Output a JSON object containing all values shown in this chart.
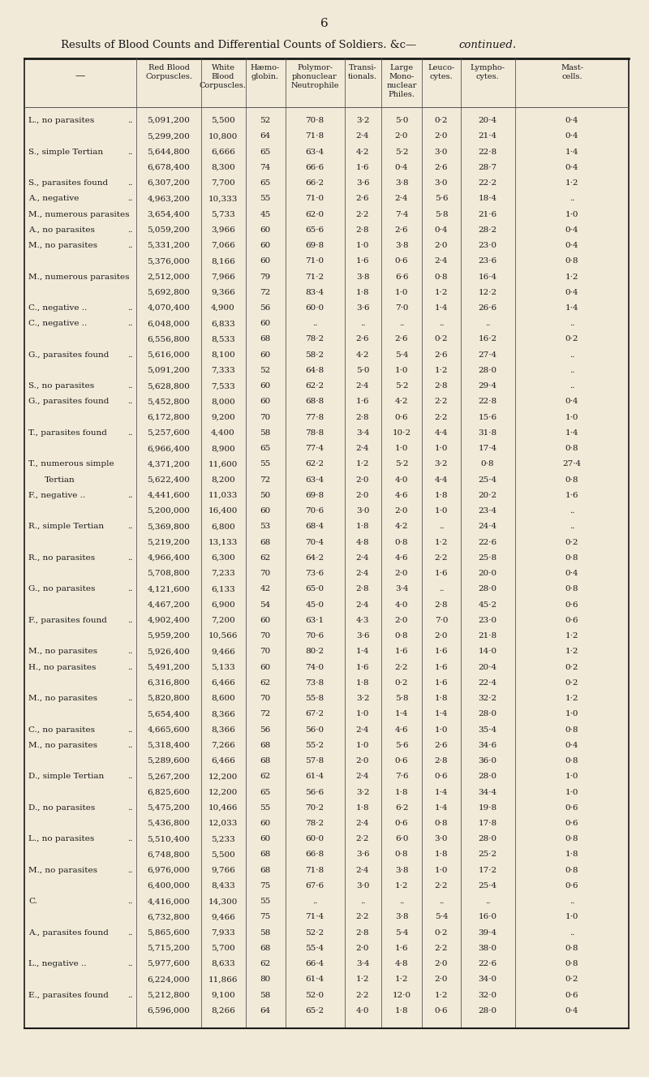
{
  "page_number": "6",
  "title_normal": "Results of Blood Counts and Differential Counts of Soldiers. &c—",
  "title_italic": "continued.",
  "bg_color": "#f2ead8",
  "col_headers": [
    "Red Blood\nCorpuscles.",
    "White\nBlood\nCorpuscles.",
    "Hæmo-\nglobin.",
    "Polymor-\nphonuclear\nNeutrophile",
    "Transi-\ntionals.",
    "Large\nMono-\nnuclear\nPhiles.",
    "Leuco-\ncytes.",
    "Lympho-\ncytes.",
    "Mast-\ncells."
  ],
  "rows": [
    [
      "L., no parasites",
      "..",
      "5,091,200",
      "5,500",
      "52",
      "70·8",
      "3·2",
      "5·0",
      "0·2",
      "20·4",
      "0·4"
    ],
    [
      "",
      "",
      "5,299,200",
      "10,800",
      "64",
      "71·8",
      "2·4",
      "2·0",
      "2·0",
      "21·4",
      "0·4"
    ],
    [
      "S., simple Tertian",
      "..",
      "5,644,800",
      "6,666",
      "65",
      "63·4",
      "4·2",
      "5·2",
      "3·0",
      "22·8",
      "1·4"
    ],
    [
      "",
      "",
      "6,678,400",
      "8,300",
      "74",
      "66·6",
      "1·6",
      "0·4",
      "2·6",
      "28·7",
      "0·4"
    ],
    [
      "S., parasites found",
      "..",
      "6,307,200",
      "7,700",
      "65",
      "66·2",
      "3·6",
      "3·8",
      "3·0",
      "22·2",
      "1·2"
    ],
    [
      "A., negative",
      "..",
      "4,963,200",
      "10,333",
      "55",
      "71·0",
      "2·6",
      "2·4",
      "5·6",
      "18·4",
      ".."
    ],
    [
      "M., numerous parasites",
      "",
      "3,654,400",
      "5,733",
      "45",
      "62·0",
      "2·2",
      "7·4",
      "5·8",
      "21·6",
      "1·0"
    ],
    [
      "A., no parasites",
      "..",
      "5,059,200",
      "3,966",
      "60",
      "65·6",
      "2·8",
      "2·6",
      "0·4",
      "28·2",
      "0·4"
    ],
    [
      "M., no parasites",
      "..",
      "5,331,200",
      "7,066",
      "60",
      "69·8",
      "1·0",
      "3·8",
      "2·0",
      "23·0",
      "0·4"
    ],
    [
      "",
      "",
      "5,376,000",
      "8,166",
      "60",
      "71·0",
      "1·6",
      "0·6",
      "2·4",
      "23·6",
      "0·8"
    ],
    [
      "M., numerous parasites",
      "",
      "2,512,000",
      "7,966",
      "79",
      "71·2",
      "3·8",
      "6·6",
      "0·8",
      "16·4",
      "1·2"
    ],
    [
      "",
      "",
      "5,692,800",
      "9,366",
      "72",
      "83·4",
      "1·8",
      "1·0",
      "1·2",
      "12·2",
      "0·4"
    ],
    [
      "C., negative ..",
      "..",
      "4,070,400",
      "4,900",
      "56",
      "60·0",
      "3·6",
      "7·0",
      "1·4",
      "26·6",
      "1·4"
    ],
    [
      "C., negative ..",
      "..",
      "6,048,000",
      "6,833",
      "60",
      "..",
      "..",
      "..",
      "..",
      "..",
      ".."
    ],
    [
      "",
      "",
      "6,556,800",
      "8,533",
      "68",
      "78·2",
      "2·6",
      "2·6",
      "0·2",
      "16·2",
      "0·2"
    ],
    [
      "G., parasites found",
      "..",
      "5,616,000",
      "8,100",
      "60",
      "58·2",
      "4·2",
      "5·4",
      "2·6",
      "27·4",
      ".."
    ],
    [
      "",
      "",
      "5,091,200",
      "7,333",
      "52",
      "64·8",
      "5·0",
      "1·0",
      "1·2",
      "28·0",
      ".."
    ],
    [
      "S., no parasites",
      "..",
      "5,628,800",
      "7,533",
      "60",
      "62·2",
      "2·4",
      "5·2",
      "2·8",
      "29·4",
      ".."
    ],
    [
      "G., parasites found",
      "..",
      "5,452,800",
      "8,000",
      "60",
      "68·8",
      "1·6",
      "4·2",
      "2·2",
      "22·8",
      "0·4"
    ],
    [
      "",
      "",
      "6,172,800",
      "9,200",
      "70",
      "77·8",
      "2·8",
      "0·6",
      "2·2",
      "15·6",
      "1·0"
    ],
    [
      "T., parasites found",
      "..",
      "5,257,600",
      "4,400",
      "58",
      "78·8",
      "3·4",
      "10·2",
      "4·4",
      "31·8",
      "1·4"
    ],
    [
      "",
      "",
      "6,966,400",
      "8,900",
      "65",
      "77·4",
      "2·4",
      "1·0",
      "1·0",
      "17·4",
      "0·8"
    ],
    [
      "T., numerous simple",
      "",
      "4,371,200",
      "11,600",
      "55",
      "62·2",
      "1·2",
      "5·2",
      "3·2",
      "0·8",
      "27·4"
    ],
    [
      "  Tertian",
      "",
      "5,622,400",
      "8,200",
      "72",
      "63·4",
      "2·0",
      "4·0",
      "4·4",
      "25·4",
      "0·8"
    ],
    [
      "F., negative ..",
      "..",
      "4,441,600",
      "11,033",
      "50",
      "69·8",
      "2·0",
      "4·6",
      "1·8",
      "20·2",
      "1·6"
    ],
    [
      "",
      "",
      "5,200,000",
      "16,400",
      "60",
      "70·6",
      "3·0",
      "2·0",
      "1·0",
      "23·4",
      ".."
    ],
    [
      "R., simple Tertian",
      "..",
      "5,369,800",
      "6,800",
      "53",
      "68·4",
      "1·8",
      "4·2",
      "..",
      "24·4",
      ".."
    ],
    [
      "",
      "",
      "5,219,200",
      "13,133",
      "68",
      "70·4",
      "4·8",
      "0·8",
      "1·2",
      "22·6",
      "0·2"
    ],
    [
      "R., no parasites",
      "..",
      "4,966,400",
      "6,300",
      "62",
      "64·2",
      "2·4",
      "4·6",
      "2·2",
      "25·8",
      "0·8"
    ],
    [
      "",
      "",
      "5,708,800",
      "7,233",
      "70",
      "73·6",
      "2·4",
      "2·0",
      "1·6",
      "20·0",
      "0·4"
    ],
    [
      "G., no parasites",
      "..",
      "4,121,600",
      "6,133",
      "42",
      "65·0",
      "2·8",
      "3·4",
      "..",
      "28·0",
      "0·8"
    ],
    [
      "",
      "",
      "4,467,200",
      "6,900",
      "54",
      "45·0",
      "2·4",
      "4·0",
      "2·8",
      "45·2",
      "0·6"
    ],
    [
      "F., parasites found",
      "..",
      "4,902,400",
      "7,200",
      "60",
      "63·1",
      "4·3",
      "2·0",
      "7·0",
      "23·0",
      "0·6"
    ],
    [
      "",
      "",
      "5,959,200",
      "10,566",
      "70",
      "70·6",
      "3·6",
      "0·8",
      "2·0",
      "21·8",
      "1·2"
    ],
    [
      "M., no parasites",
      "..",
      "5,926,400",
      "9,466",
      "70",
      "80·2",
      "1·4",
      "1·6",
      "1·6",
      "14·0",
      "1·2"
    ],
    [
      "H., no parasites",
      "..",
      "5,491,200",
      "5,133",
      "60",
      "74·0",
      "1·6",
      "2·2",
      "1·6",
      "20·4",
      "0·2"
    ],
    [
      "",
      "",
      "6,316,800",
      "6,466",
      "62",
      "73·8",
      "1·8",
      "0·2",
      "1·6",
      "22·4",
      "0·2"
    ],
    [
      "M., no parasites",
      "..",
      "5,820,800",
      "8,600",
      "70",
      "55·8",
      "3·2",
      "5·8",
      "1·8",
      "32·2",
      "1·2"
    ],
    [
      "",
      "",
      "5,654,400",
      "8,366",
      "72",
      "67·2",
      "1·0",
      "1·4",
      "1·4",
      "28·0",
      "1·0"
    ],
    [
      "C., no parasites",
      "..",
      "4,665,600",
      "8,366",
      "56",
      "56·0",
      "2·4",
      "4·6",
      "1·0",
      "35·4",
      "0·8"
    ],
    [
      "M., no parasites",
      "..",
      "5,318,400",
      "7,266",
      "68",
      "55·2",
      "1·0",
      "5·6",
      "2·6",
      "34·6",
      "0·4"
    ],
    [
      "",
      "",
      "5,289,600",
      "6,466",
      "68",
      "57·8",
      "2·0",
      "0·6",
      "2·8",
      "36·0",
      "0·8"
    ],
    [
      "D., simple Tertian",
      "..",
      "5,267,200",
      "12,200",
      "62",
      "61·4",
      "2·4",
      "7·6",
      "0·6",
      "28·0",
      "1·0"
    ],
    [
      "",
      "",
      "6,825,600",
      "12,200",
      "65",
      "56·6",
      "3·2",
      "1·8",
      "1·4",
      "34·4",
      "1·0"
    ],
    [
      "D., no parasites",
      "..",
      "5,475,200",
      "10,466",
      "55",
      "70·2",
      "1·8",
      "6·2",
      "1·4",
      "19·8",
      "0·6"
    ],
    [
      "",
      "",
      "5,436,800",
      "12,033",
      "60",
      "78·2",
      "2·4",
      "0·6",
      "0·8",
      "17·8",
      "0·6"
    ],
    [
      "L., no parasites",
      "..",
      "5,510,400",
      "5,233",
      "60",
      "60·0",
      "2·2",
      "6·0",
      "3·0",
      "28·0",
      "0·8"
    ],
    [
      "",
      "",
      "6,748,800",
      "5,500",
      "68",
      "66·8",
      "3·6",
      "0·8",
      "1·8",
      "25·2",
      "1·8"
    ],
    [
      "M., no parasites",
      "..",
      "6,976,000",
      "9,766",
      "68",
      "71·8",
      "2·4",
      "3·8",
      "1·0",
      "17·2",
      "0·8"
    ],
    [
      "",
      "",
      "6,400,000",
      "8,433",
      "75",
      "67·6",
      "3·0",
      "1·2",
      "2·2",
      "25·4",
      "0·6"
    ],
    [
      "C.",
      "..",
      "4,416,000",
      "14,300",
      "55",
      "..",
      "..",
      "..",
      "..",
      "..",
      ".."
    ],
    [
      "",
      "",
      "6,732,800",
      "9,466",
      "75",
      "71·4",
      "2·2",
      "3·8",
      "5·4",
      "16·0",
      "1·0"
    ],
    [
      "A., parasites found",
      "..",
      "5,865,600",
      "7,933",
      "58",
      "52·2",
      "2·8",
      "5·4",
      "0·2",
      "39·4",
      ".."
    ],
    [
      "",
      "",
      "5,715,200",
      "5,700",
      "68",
      "55·4",
      "2·0",
      "1·6",
      "2·2",
      "38·0",
      "0·8"
    ],
    [
      "L., negative ..",
      "..",
      "5,977,600",
      "8,633",
      "62",
      "66·4",
      "3·4",
      "4·8",
      "2·0",
      "22·6",
      "0·8"
    ],
    [
      "",
      "",
      "6,224,000",
      "11,866",
      "80",
      "61·4",
      "1·2",
      "1·2",
      "2·0",
      "34·0",
      "0·2"
    ],
    [
      "E., parasites found",
      "..",
      "5,212,800",
      "9,100",
      "58",
      "52·0",
      "2·2",
      "12·0",
      "1·2",
      "32·0",
      "0·6"
    ],
    [
      "",
      "",
      "6,596,000",
      "8,266",
      "64",
      "65·2",
      "4·0",
      "1·8",
      "0·6",
      "28·0",
      "0·4"
    ]
  ]
}
